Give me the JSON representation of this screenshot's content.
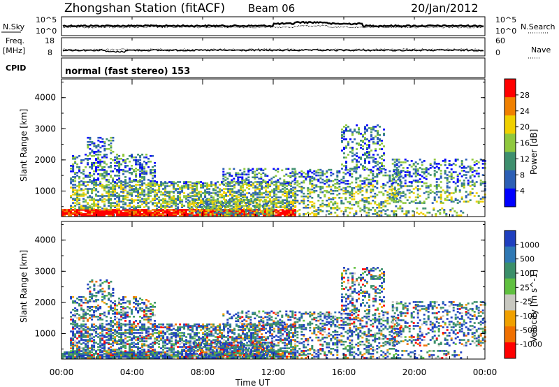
{
  "header": {
    "station": "Zhongshan Station (fitACF)",
    "beam": "Beam 06",
    "date": "20/Jan/2012"
  },
  "noise_panel": {
    "left_label": "N.Sky",
    "right_label": "N.Search",
    "tick_top": "10^5",
    "tick_bottom": "10^0"
  },
  "freq_panel": {
    "left_label_1": "Freq.",
    "left_label_2": "[MHz]",
    "tick_top": "18",
    "tick_bottom": "8",
    "right_label": "Nave",
    "right_tick_top": "60",
    "right_tick_bottom": "0"
  },
  "cpid": {
    "label": "CPID",
    "text": "normal (fast stereo) 153"
  },
  "chart_data": [
    {
      "type": "heatmap",
      "name": "power",
      "ylabel": "Slant Range [km]",
      "y_ticks": [
        "1000",
        "2000",
        "3000",
        "4000"
      ],
      "ylim": [
        180,
        4600
      ],
      "colorbar_label": "Power [dB]",
      "colorbar_ticks": [
        "4",
        "8",
        "12",
        "16",
        "20",
        "24",
        "28"
      ],
      "colors": [
        "#0000ff",
        "#2c5fb5",
        "#3e8f6e",
        "#8fc83e",
        "#f0d000",
        "#f08000",
        "#ff0000"
      ]
    },
    {
      "type": "heatmap",
      "name": "velocity",
      "ylabel": "Slant Range [km]",
      "y_ticks": [
        "1000",
        "2000",
        "3000",
        "4000"
      ],
      "ylim": [
        180,
        4600
      ],
      "colorbar_label": "Velocity [m s^-1]",
      "colorbar_ticks": [
        "1000",
        "500",
        "100",
        "25",
        "-25",
        "-100",
        "-500",
        "-1000"
      ],
      "colors": [
        "#1f3fbf",
        "#2f78b4",
        "#3b8f6a",
        "#60c040",
        "#c8c8c0",
        "#f0a000",
        "#f07000",
        "#ff0000"
      ]
    }
  ],
  "x_axis": {
    "tick_labels": [
      "00:00",
      "04:00",
      "08:00",
      "12:00",
      "16:00",
      "20:00",
      "00:00"
    ],
    "xlabel": "Time UT"
  }
}
